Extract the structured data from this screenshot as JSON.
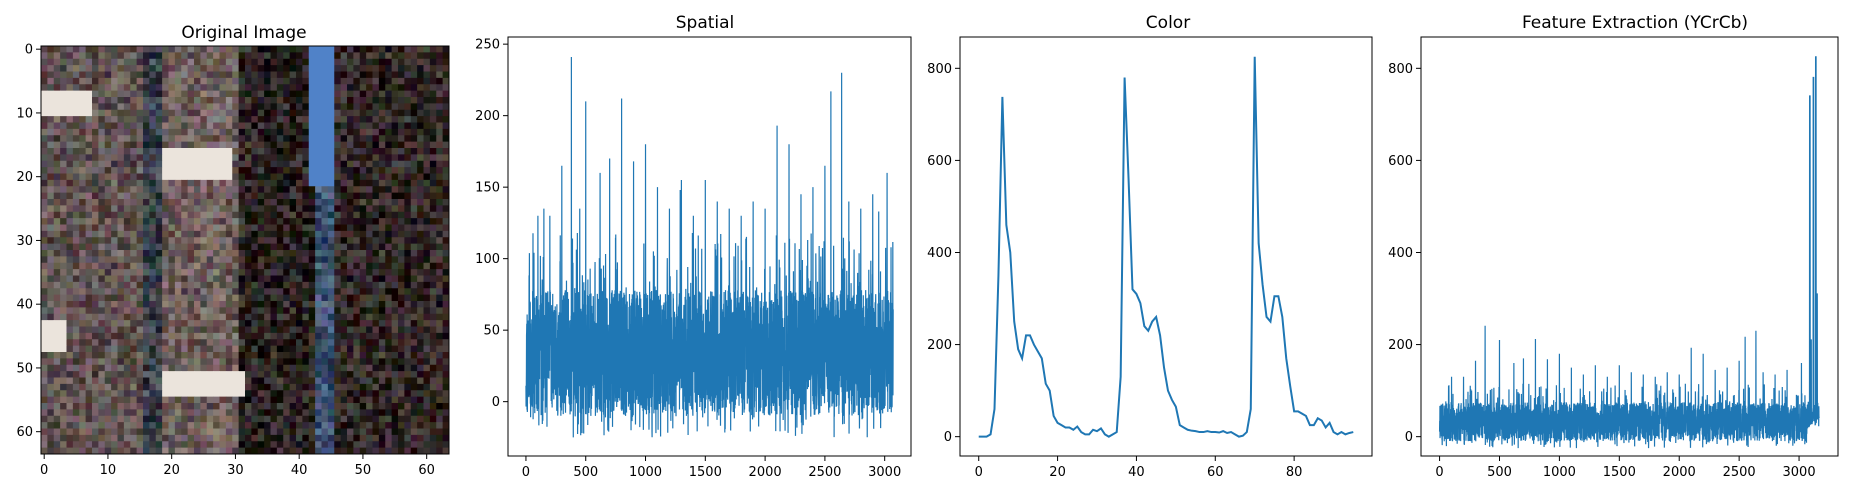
{
  "chart_data": [
    {
      "type": "image",
      "title": "Original Image",
      "xlim": [
        -0.5,
        63.5
      ],
      "ylim": [
        63.5,
        -0.5
      ],
      "xticks": [
        0,
        10,
        20,
        30,
        40,
        50,
        60
      ],
      "yticks": [
        0,
        10,
        20,
        30,
        40,
        50,
        60
      ],
      "description_colors": [
        "#5b4f4a",
        "#2a2220",
        "#8a7a72",
        "#e8e0d8",
        "#4a78c0"
      ]
    },
    {
      "type": "line",
      "title": "Spatial",
      "xlim": [
        -150,
        3220
      ],
      "ylim": [
        -38,
        255
      ],
      "xticks": [
        0,
        500,
        1000,
        1500,
        2000,
        2500,
        3000
      ],
      "yticks": [
        0,
        50,
        100,
        150,
        200,
        250
      ],
      "n_points": 3072,
      "band_low": -10,
      "band_high": 78,
      "spikes": [
        [
          100,
          130
        ],
        [
          150,
          135
        ],
        [
          200,
          130
        ],
        [
          300,
          165
        ],
        [
          380,
          241
        ],
        [
          450,
          135
        ],
        [
          500,
          210
        ],
        [
          620,
          160
        ],
        [
          700,
          170
        ],
        [
          800,
          212
        ],
        [
          900,
          168
        ],
        [
          1000,
          180
        ],
        [
          1100,
          150
        ],
        [
          1200,
          135
        ],
        [
          1290,
          148
        ],
        [
          1300,
          155
        ],
        [
          1400,
          130
        ],
        [
          1500,
          155
        ],
        [
          1600,
          140
        ],
        [
          1700,
          135
        ],
        [
          1800,
          130
        ],
        [
          1900,
          140
        ],
        [
          2000,
          135
        ],
        [
          2100,
          193
        ],
        [
          2200,
          180
        ],
        [
          2300,
          145
        ],
        [
          2400,
          150
        ],
        [
          2500,
          165
        ],
        [
          2550,
          217
        ],
        [
          2640,
          230
        ],
        [
          2700,
          140
        ],
        [
          2800,
          135
        ],
        [
          2900,
          145
        ],
        [
          2950,
          133
        ],
        [
          3020,
          160
        ]
      ],
      "color": "#1f77b4"
    },
    {
      "type": "line",
      "title": "Color",
      "xlim": [
        -4.75,
        99.75
      ],
      "ylim": [
        -42,
        868
      ],
      "xticks": [
        0,
        20,
        40,
        60,
        80
      ],
      "yticks": [
        0,
        200,
        400,
        600,
        800
      ],
      "x": [
        0,
        1,
        2,
        3,
        4,
        5,
        6,
        7,
        8,
        9,
        10,
        11,
        12,
        13,
        14,
        15,
        16,
        17,
        18,
        19,
        20,
        21,
        22,
        23,
        24,
        25,
        26,
        27,
        28,
        29,
        30,
        31,
        32,
        33,
        34,
        35,
        36,
        37,
        38,
        39,
        40,
        41,
        42,
        43,
        44,
        45,
        46,
        47,
        48,
        49,
        50,
        51,
        52,
        53,
        54,
        55,
        56,
        57,
        58,
        59,
        60,
        61,
        62,
        63,
        64,
        65,
        66,
        67,
        68,
        69,
        70,
        71,
        72,
        73,
        74,
        75,
        76,
        77,
        78,
        79,
        80,
        81,
        82,
        83,
        84,
        85,
        86,
        87,
        88,
        89,
        90,
        91,
        92,
        93,
        94,
        95
      ],
      "values": [
        0,
        0,
        0,
        5,
        60,
        350,
        738,
        460,
        400,
        250,
        190,
        170,
        220,
        220,
        200,
        185,
        170,
        115,
        100,
        45,
        30,
        25,
        20,
        20,
        15,
        22,
        10,
        5,
        5,
        15,
        12,
        18,
        5,
        0,
        5,
        10,
        130,
        780,
        560,
        320,
        310,
        290,
        240,
        230,
        250,
        260,
        220,
        150,
        100,
        80,
        65,
        25,
        20,
        15,
        13,
        12,
        10,
        10,
        12,
        10,
        10,
        9,
        12,
        8,
        10,
        5,
        0,
        2,
        10,
        60,
        825,
        420,
        330,
        260,
        250,
        305,
        305,
        260,
        170,
        110,
        55,
        55,
        50,
        45,
        25,
        25,
        40,
        35,
        20,
        30,
        10,
        5,
        10,
        5,
        8,
        10
      ],
      "color": "#1f77b4"
    },
    {
      "type": "line",
      "title": "Feature Extraction (YCrCb)",
      "xlim": [
        -155,
        3325
      ],
      "ylim": [
        -42,
        868
      ],
      "xticks": [
        0,
        500,
        1000,
        1500,
        2000,
        2500,
        3000
      ],
      "yticks": [
        0,
        200,
        400,
        600,
        800
      ],
      "n_points": 3168,
      "band_low": -10,
      "band_high": 75,
      "spikes": [
        [
          100,
          130
        ],
        [
          200,
          130
        ],
        [
          300,
          165
        ],
        [
          380,
          241
        ],
        [
          500,
          210
        ],
        [
          620,
          160
        ],
        [
          700,
          170
        ],
        [
          800,
          212
        ],
        [
          900,
          168
        ],
        [
          1000,
          180
        ],
        [
          1100,
          150
        ],
        [
          1200,
          135
        ],
        [
          1300,
          155
        ],
        [
          1400,
          130
        ],
        [
          1500,
          155
        ],
        [
          1600,
          140
        ],
        [
          1700,
          135
        ],
        [
          1800,
          130
        ],
        [
          1900,
          140
        ],
        [
          2000,
          135
        ],
        [
          2100,
          193
        ],
        [
          2200,
          180
        ],
        [
          2300,
          145
        ],
        [
          2400,
          150
        ],
        [
          2500,
          165
        ],
        [
          2550,
          217
        ],
        [
          2640,
          230
        ],
        [
          2700,
          140
        ],
        [
          2800,
          135
        ],
        [
          2900,
          145
        ],
        [
          3020,
          160
        ]
      ],
      "color_hist_tail": [
        [
          3090,
          740
        ],
        [
          3100,
          210
        ],
        [
          3120,
          780
        ],
        [
          3140,
          825
        ],
        [
          3150,
          310
        ],
        [
          3160,
          60
        ]
      ],
      "color": "#1f77b4"
    }
  ]
}
